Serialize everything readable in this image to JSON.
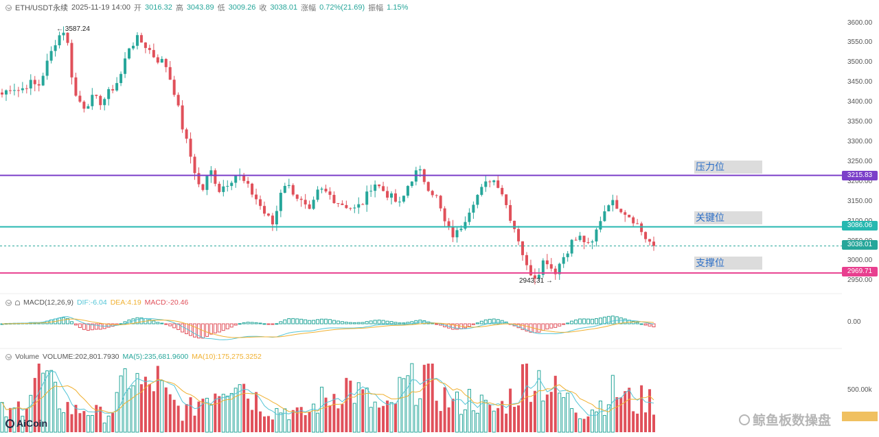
{
  "header": {
    "symbol": "ETH/USDT永续",
    "datetime": "2025-11-19 14:00",
    "open_label": "开",
    "open": "3016.32",
    "high_label": "高",
    "high": "3043.89",
    "low_label": "低",
    "low": "3009.26",
    "close_label": "收",
    "close": "3038.01",
    "change_label": "涨幅",
    "change": "0.72%(21.69)",
    "amp_label": "振幅",
    "amp": "1.15%"
  },
  "levels": {
    "resistance": {
      "label": "压力位",
      "value": 3215.83,
      "text": "3215.83",
      "color": "#7b3fc9"
    },
    "key": {
      "label": "关键位",
      "value": 3086.06,
      "text": "3086.06",
      "color": "#26b8b0"
    },
    "current": {
      "value": 3038.01,
      "text": "3038.01",
      "color": "#26a69a"
    },
    "support": {
      "label": "支撑位",
      "value": 2969.71,
      "text": "2969.71",
      "color": "#e83f8f"
    }
  },
  "annotations": {
    "high": "3587.24",
    "low": "2943.31"
  },
  "macd": {
    "title": "MACD(12,26,9)",
    "dif": "DIF:-6.04",
    "dea": "DEA:4.19",
    "macd": "MACD:-20.46",
    "zero_label": "0.00"
  },
  "volume": {
    "title": "Volume",
    "vol": "VOLUME:202,801.7930",
    "ma5": "MA(5):235,681.9600",
    "ma10": "MA(10):175,275.3252",
    "axis_label": "500.00k"
  },
  "branding": {
    "logo": "AiCoin",
    "watermark": "鲸鱼板数操盘"
  },
  "colors": {
    "up": "#26a69a",
    "down": "#e0505a",
    "dif": "#52c4d6",
    "dea": "#f0b030",
    "ma5": "#52c4d6",
    "ma10": "#f0b030"
  },
  "chart_data": {
    "type": "candlestick",
    "y_axis_ticks": [
      3600,
      3550,
      3500,
      3450,
      3400,
      3350,
      3300,
      3250,
      3200,
      3150,
      3100,
      3050,
      3000,
      2950
    ],
    "ylim": [
      2935,
      3620
    ],
    "price_path": [
      3420,
      3440,
      3430,
      3450,
      3440,
      3500,
      3560,
      3587,
      3420,
      3390,
      3410,
      3400,
      3430,
      3460,
      3540,
      3560,
      3540,
      3510,
      3500,
      3430,
      3330,
      3250,
      3170,
      3230,
      3180,
      3200,
      3220,
      3190,
      3160,
      3120,
      3090,
      3200,
      3180,
      3150,
      3120,
      3180,
      3170,
      3150,
      3140,
      3130,
      3150,
      3200,
      3180,
      3160,
      3140,
      3200,
      3230,
      3190,
      3160,
      3090,
      3060,
      3100,
      3150,
      3180,
      3210,
      3190,
      3120,
      3060,
      2980,
      2960,
      3010,
      2970,
      3010,
      3050,
      3060,
      3030,
      3100,
      3150,
      3140,
      3120,
      3100,
      3060,
      3038
    ],
    "volume_series_relative": [
      0.3,
      0.25,
      0.4,
      0.6,
      0.9,
      0.7,
      0.5,
      0.4,
      0.3,
      0.35,
      0.3,
      0.25,
      0.3,
      0.5,
      0.9,
      0.7,
      0.6,
      0.8,
      0.5,
      0.4,
      0.3,
      0.35,
      0.5,
      0.6,
      0.7,
      0.8,
      1.0,
      0.6,
      0.5,
      0.4,
      0.3,
      0.35,
      0.3,
      0.25,
      0.3,
      0.45,
      0.5,
      0.6,
      0.7,
      0.6,
      0.5,
      0.4,
      0.3,
      0.35,
      0.6,
      0.7,
      0.8,
      0.9,
      0.6,
      0.5,
      0.4,
      0.45,
      0.5,
      0.4,
      0.3,
      0.35,
      0.5,
      0.6,
      0.9,
      0.85,
      0.7,
      0.6,
      0.5,
      0.4,
      0.3,
      0.35,
      0.4,
      0.55,
      0.6,
      0.5,
      0.4,
      0.5,
      0.45
    ]
  }
}
